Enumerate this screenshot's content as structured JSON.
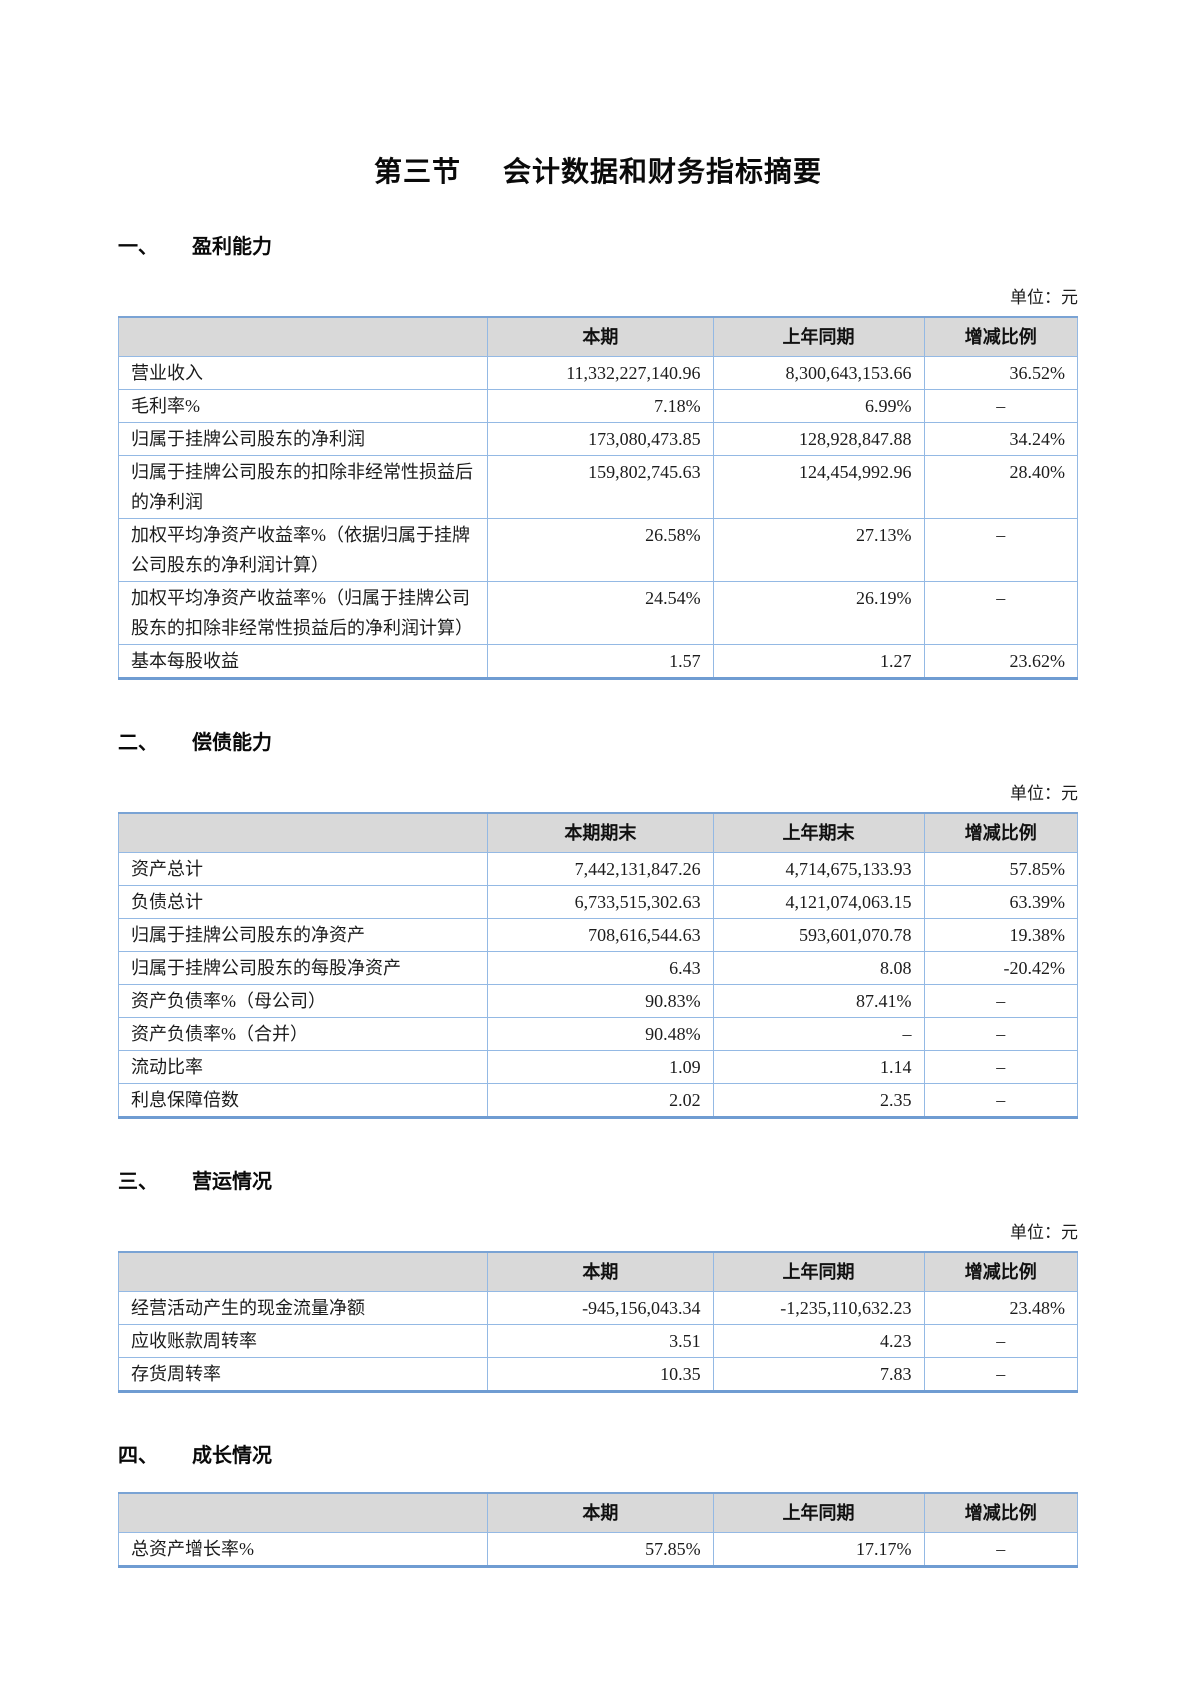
{
  "page": {
    "section_no": "第三节",
    "title": "会计数据和财务指标摘要"
  },
  "sections": [
    {
      "number": "一、",
      "heading": "盈利能力",
      "unit_label": "单位：元",
      "table": {
        "col_headers": [
          "本期",
          "上年同期",
          "增减比例"
        ],
        "rows": [
          {
            "label": "营业收入",
            "current": "11,332,227,140.96",
            "prior": "8,300,643,153.66",
            "change": "36.52%"
          },
          {
            "label": "毛利率%",
            "current": "7.18%",
            "prior": "6.99%",
            "change": "–"
          },
          {
            "label": "归属于挂牌公司股东的净利润",
            "current": "173,080,473.85",
            "prior": "128,928,847.88",
            "change": "34.24%"
          },
          {
            "label": "归属于挂牌公司股东的扣除非经常性损益后的净利润",
            "current": "159,802,745.63",
            "prior": "124,454,992.96",
            "change": "28.40%"
          },
          {
            "label": "加权平均净资产收益率%（依据归属于挂牌公司股东的净利润计算）",
            "current": "26.58%",
            "prior": "27.13%",
            "change": "–"
          },
          {
            "label": "加权平均净资产收益率%（归属于挂牌公司股东的扣除非经常性损益后的净利润计算）",
            "current": "24.54%",
            "prior": "26.19%",
            "change": "–"
          },
          {
            "label": "基本每股收益",
            "current": "1.57",
            "prior": "1.27",
            "change": "23.62%"
          }
        ]
      }
    },
    {
      "number": "二、",
      "heading": "偿债能力",
      "unit_label": "单位：元",
      "table": {
        "col_headers": [
          "本期期末",
          "上年期末",
          "增减比例"
        ],
        "rows": [
          {
            "label": "资产总计",
            "current": "7,442,131,847.26",
            "prior": "4,714,675,133.93",
            "change": "57.85%"
          },
          {
            "label": "负债总计",
            "current": "6,733,515,302.63",
            "prior": "4,121,074,063.15",
            "change": "63.39%"
          },
          {
            "label": "归属于挂牌公司股东的净资产",
            "current": "708,616,544.63",
            "prior": "593,601,070.78",
            "change": "19.38%"
          },
          {
            "label": "归属于挂牌公司股东的每股净资产",
            "current": "6.43",
            "prior": "8.08",
            "change": "-20.42%"
          },
          {
            "label": "资产负债率%（母公司）",
            "current": "90.83%",
            "prior": "87.41%",
            "change": "–"
          },
          {
            "label": "资产负债率%（合并）",
            "current": "90.48%",
            "prior": "–",
            "change": "–"
          },
          {
            "label": "流动比率",
            "current": "1.09",
            "prior": "1.14",
            "change": "–"
          },
          {
            "label": "利息保障倍数",
            "current": "2.02",
            "prior": "2.35",
            "change": "–"
          }
        ]
      }
    },
    {
      "number": "三、",
      "heading": "营运情况",
      "unit_label": "单位：元",
      "table": {
        "col_headers": [
          "本期",
          "上年同期",
          "增减比例"
        ],
        "rows": [
          {
            "label": "经营活动产生的现金流量净额",
            "current": "-945,156,043.34",
            "prior": "-1,235,110,632.23",
            "change": "23.48%"
          },
          {
            "label": "应收账款周转率",
            "current": "3.51",
            "prior": "4.23",
            "change": "–"
          },
          {
            "label": "存货周转率",
            "current": "10.35",
            "prior": "7.83",
            "change": "–"
          }
        ]
      }
    },
    {
      "number": "四、",
      "heading": "成长情况",
      "table": {
        "col_headers": [
          "本期",
          "上年同期",
          "增减比例"
        ],
        "rows": [
          {
            "label": "总资产增长率%",
            "current": "57.85%",
            "prior": "17.17%",
            "change": "–"
          }
        ]
      }
    }
  ]
}
